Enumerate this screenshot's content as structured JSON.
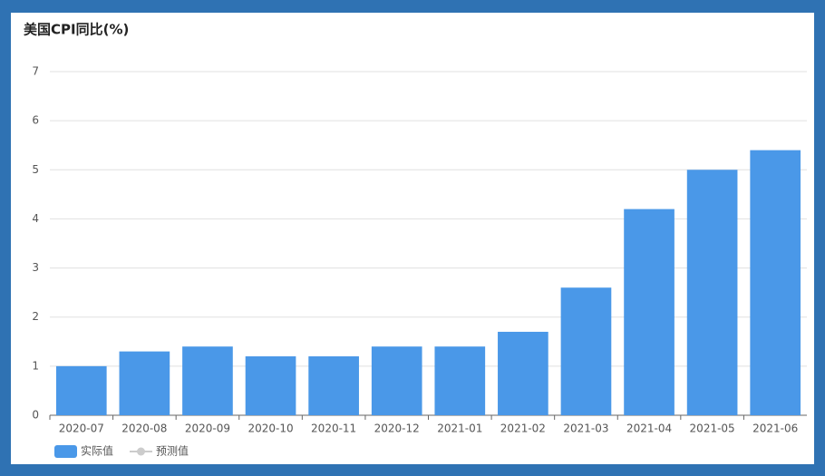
{
  "chart_data": {
    "type": "bar",
    "title": "美国CPI同比(%)",
    "categories": [
      "2020-07",
      "2020-08",
      "2020-09",
      "2020-10",
      "2020-11",
      "2020-12",
      "2021-01",
      "2021-02",
      "2021-03",
      "2021-04",
      "2021-05",
      "2021-06"
    ],
    "series": [
      {
        "name": "实际值",
        "color": "#4a98e8",
        "values": [
          1.0,
          1.3,
          1.4,
          1.2,
          1.2,
          1.4,
          1.4,
          1.7,
          2.6,
          4.2,
          5.0,
          5.4
        ]
      },
      {
        "name": "预测值",
        "color": "#cccccc",
        "values": [
          null,
          null,
          null,
          null,
          null,
          null,
          null,
          null,
          null,
          null,
          null,
          null
        ]
      }
    ],
    "ylim": [
      0,
      7
    ],
    "yticks": [
      0,
      1,
      2,
      3,
      4,
      5,
      6,
      7
    ],
    "grid": true
  }
}
